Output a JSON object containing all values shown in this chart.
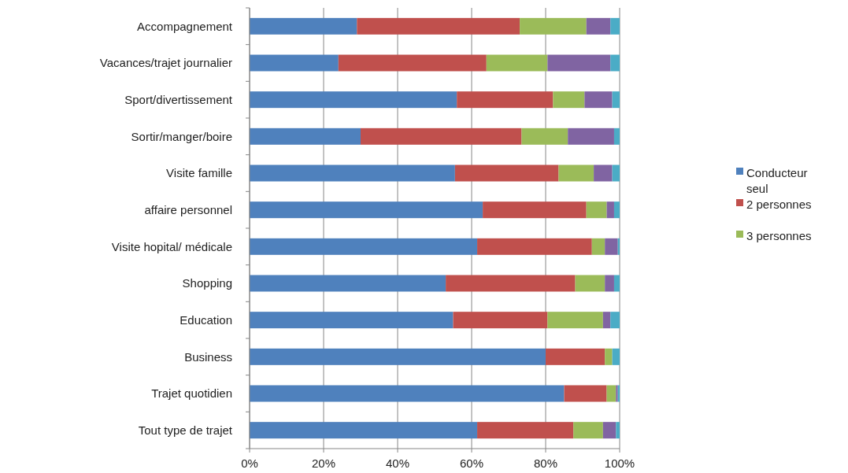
{
  "chart_data": {
    "type": "bar",
    "orientation": "horizontal",
    "stacked": true,
    "categories": [
      "Accompagnement",
      "Vacances/trajet journalier",
      "Sport/divertissement",
      "Sortir/manger/boire",
      "Visite famille",
      "affaire personnel",
      "Visite hopital/ médicale",
      "Shopping",
      "Education",
      "Business",
      "Trajet quotidien",
      "Tout type de trajet"
    ],
    "series": [
      {
        "name": "Conducteur seul",
        "color": "#4f81bd",
        "values": [
          29,
          24,
          56,
          30,
          55.5,
          63,
          61.5,
          53,
          55,
          80,
          85,
          61.5
        ]
      },
      {
        "name": "2 personnes",
        "color": "#c0504d",
        "values": [
          44,
          40,
          26,
          43.5,
          28,
          28,
          31,
          35,
          25.5,
          16,
          11.5,
          26
        ]
      },
      {
        "name": "3 personnes",
        "color": "#9bbb59",
        "values": [
          18,
          16.5,
          8.5,
          12.5,
          9.5,
          5.5,
          3.5,
          8,
          15,
          2,
          2.5,
          8
        ]
      },
      {
        "color": "#8064a2",
        "values": [
          6.5,
          17,
          7.5,
          12.5,
          5,
          2,
          3.5,
          2.5,
          2,
          0,
          0.5,
          3.5
        ]
      },
      {
        "color": "#4bacc6",
        "values": [
          2.5,
          2.5,
          2,
          1.5,
          2,
          1.5,
          0.5,
          1.5,
          2.5,
          2,
          0.5,
          1
        ]
      }
    ],
    "xlim": [
      0,
      100
    ],
    "xticks": [
      {
        "value": 0,
        "label": "0%"
      },
      {
        "value": 20,
        "label": "20%"
      },
      {
        "value": 40,
        "label": "40%"
      },
      {
        "value": 60,
        "label": "60%"
      },
      {
        "value": 80,
        "label": "80%"
      },
      {
        "value": 100,
        "label": "100%"
      }
    ],
    "grid": "x",
    "legend": "right"
  }
}
